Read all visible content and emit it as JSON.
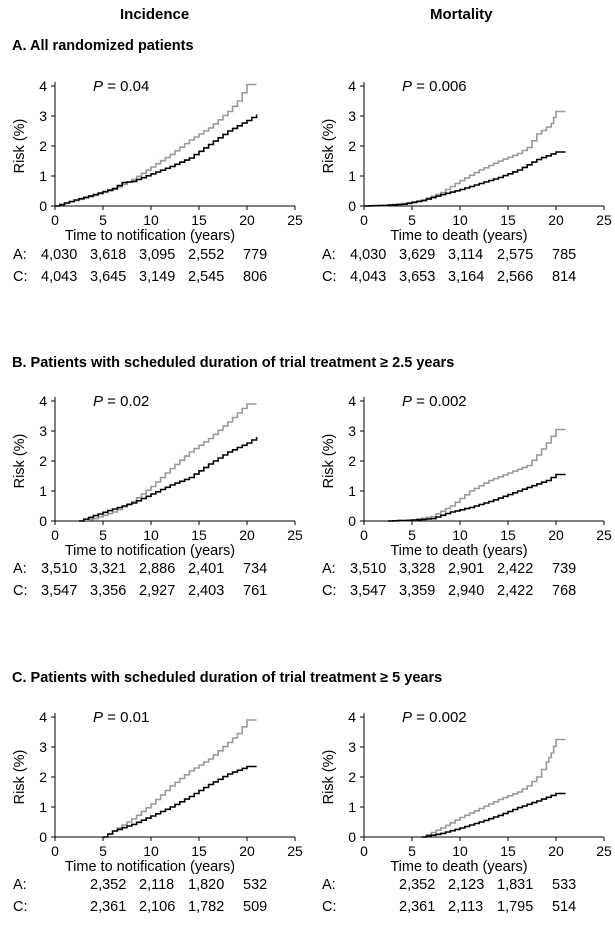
{
  "columns": {
    "incidence": "Incidence",
    "mortality": "Mortality"
  },
  "sections": [
    {
      "title": "A. All randomized patients"
    },
    {
      "title": "B. Patients with scheduled duration of trial treatment ≥ 2.5 years"
    },
    {
      "title": "C. Patients with scheduled duration of trial treatment ≥ 5 years"
    }
  ],
  "colors": {
    "A": "#9a9a9a",
    "C": "#000000"
  },
  "chart_data": [
    {
      "type": "line",
      "section": "A",
      "column": "Incidence",
      "p_label": "P",
      "p_value": "= 0.04",
      "xlabel": "Time to notification (years)",
      "ylabel": "Risk (%)",
      "xlim": [
        0,
        25
      ],
      "ylim": [
        0,
        4
      ],
      "xticks": [
        "0",
        "5",
        "10",
        "15",
        "20",
        "25"
      ],
      "yticks": [
        "0",
        "1",
        "2",
        "3",
        "4"
      ],
      "series": [
        {
          "key": "A",
          "x": [
            0,
            2,
            4,
            6,
            8,
            10,
            12,
            14,
            16,
            18,
            19,
            20,
            21
          ],
          "y": [
            0,
            0.18,
            0.35,
            0.55,
            0.88,
            1.3,
            1.72,
            2.2,
            2.6,
            3.15,
            3.5,
            4.05,
            4.05
          ]
        },
        {
          "key": "C",
          "x": [
            0,
            2,
            4,
            6,
            7,
            8,
            10,
            12,
            14,
            16,
            18,
            20,
            21
          ],
          "y": [
            0,
            0.2,
            0.38,
            0.58,
            0.78,
            0.82,
            1.07,
            1.32,
            1.6,
            2.05,
            2.5,
            2.85,
            3.05
          ]
        }
      ],
      "risk_table": {
        "A": [
          "4,030",
          "3,618",
          "3,095",
          "2,552",
          "779"
        ],
        "C": [
          "4,043",
          "3,645",
          "3,149",
          "2,545",
          "806"
        ]
      }
    },
    {
      "type": "line",
      "section": "A",
      "column": "Mortality",
      "p_label": "P",
      "p_value": "= 0.006",
      "xlabel": "Time to death (years)",
      "ylabel": "Risk (%)",
      "xlim": [
        0,
        25
      ],
      "ylim": [
        0,
        4
      ],
      "xticks": [
        "0",
        "5",
        "10",
        "15",
        "20",
        "25"
      ],
      "yticks": [
        "0",
        "1",
        "2",
        "3",
        "4"
      ],
      "series": [
        {
          "key": "A",
          "x": [
            0,
            2,
            4,
            6,
            8,
            10,
            12,
            14,
            16,
            17,
            18,
            19.5,
            20,
            21
          ],
          "y": [
            0,
            0.02,
            0.08,
            0.2,
            0.45,
            0.85,
            1.2,
            1.5,
            1.75,
            1.95,
            2.4,
            2.75,
            3.15,
            3.15
          ]
        },
        {
          "key": "C",
          "x": [
            0,
            2,
            4,
            6,
            8,
            10,
            12,
            14,
            16,
            18,
            20,
            21
          ],
          "y": [
            0,
            0.02,
            0.06,
            0.18,
            0.38,
            0.55,
            0.75,
            0.95,
            1.2,
            1.55,
            1.8,
            1.8
          ]
        }
      ],
      "risk_table": {
        "A": [
          "4,030",
          "3,629",
          "3,114",
          "2,575",
          "785"
        ],
        "C": [
          "4,043",
          "3,653",
          "3,164",
          "2,566",
          "814"
        ]
      }
    },
    {
      "type": "line",
      "section": "B",
      "column": "Incidence",
      "p_label": "P",
      "p_value": "= 0.02",
      "xlabel": "Time to notification (years)",
      "ylabel": "Risk (%)",
      "xlim": [
        0,
        25
      ],
      "ylim": [
        0,
        4
      ],
      "xticks": [
        "0",
        "5",
        "10",
        "15",
        "20",
        "25"
      ],
      "yticks": [
        "0",
        "1",
        "2",
        "3",
        "4"
      ],
      "series": [
        {
          "key": "A",
          "x": [
            2.5,
            4,
            6,
            8,
            10,
            12,
            14,
            16,
            18,
            20,
            21
          ],
          "y": [
            0,
            0.08,
            0.3,
            0.65,
            1.15,
            1.75,
            2.3,
            2.75,
            3.3,
            3.9,
            3.9
          ]
        },
        {
          "key": "C",
          "x": [
            2.5,
            4,
            6,
            8,
            10,
            12,
            14,
            16,
            18,
            20,
            21
          ],
          "y": [
            0,
            0.18,
            0.4,
            0.6,
            0.9,
            1.2,
            1.45,
            1.9,
            2.3,
            2.6,
            2.8
          ]
        }
      ],
      "risk_table": {
        "A": [
          "3,510",
          "3,321",
          "2,886",
          "2,401",
          "734"
        ],
        "C": [
          "3,547",
          "3,356",
          "2,927",
          "2,403",
          "761"
        ]
      }
    },
    {
      "type": "line",
      "section": "B",
      "column": "Mortality",
      "p_label": "P",
      "p_value": "= 0.002",
      "xlabel": "Time to death (years)",
      "ylabel": "Risk (%)",
      "xlim": [
        0,
        25
      ],
      "ylim": [
        0,
        4
      ],
      "xticks": [
        "0",
        "5",
        "10",
        "15",
        "20",
        "25"
      ],
      "yticks": [
        "0",
        "1",
        "2",
        "3",
        "4"
      ],
      "series": [
        {
          "key": "A",
          "x": [
            2.5,
            5,
            7,
            9,
            11,
            13,
            15,
            17,
            18,
            19,
            20,
            21
          ],
          "y": [
            0,
            0.03,
            0.15,
            0.5,
            1.0,
            1.35,
            1.6,
            1.85,
            2.2,
            2.6,
            3.05,
            3.05
          ]
        },
        {
          "key": "C",
          "x": [
            2.5,
            5,
            7,
            9,
            11,
            13,
            15,
            17,
            19,
            20,
            21
          ],
          "y": [
            0,
            0.03,
            0.08,
            0.3,
            0.45,
            0.65,
            0.88,
            1.12,
            1.35,
            1.55,
            1.55
          ]
        }
      ],
      "risk_table": {
        "A": [
          "3,510",
          "3,328",
          "2,901",
          "2,422",
          "739"
        ],
        "C": [
          "3,547",
          "3,359",
          "2,940",
          "2,422",
          "768"
        ]
      }
    },
    {
      "type": "line",
      "section": "C",
      "column": "Incidence",
      "p_label": "P",
      "p_value": "= 0.01",
      "xlabel": "Time to notification (years)",
      "ylabel": "Risk (%)",
      "xlim": [
        0,
        25
      ],
      "ylim": [
        0,
        4
      ],
      "xticks": [
        "0",
        "5",
        "10",
        "15",
        "20",
        "25"
      ],
      "yticks": [
        "0",
        "1",
        "2",
        "3",
        "4"
      ],
      "series": [
        {
          "key": "A",
          "x": [
            5,
            6,
            8,
            10,
            12,
            14,
            16,
            18,
            19,
            20,
            21
          ],
          "y": [
            0,
            0.2,
            0.6,
            1.1,
            1.7,
            2.2,
            2.6,
            3.15,
            3.45,
            3.9,
            3.9
          ]
        },
        {
          "key": "C",
          "x": [
            5,
            6,
            8,
            10,
            12,
            14,
            16,
            18,
            20,
            21
          ],
          "y": [
            0,
            0.2,
            0.42,
            0.7,
            1.0,
            1.35,
            1.75,
            2.1,
            2.35,
            2.35
          ]
        }
      ],
      "risk_table": {
        "A": [
          "2,352",
          "2,118",
          "1,820",
          "532"
        ],
        "C": [
          "2,361",
          "2,106",
          "1,782",
          "509"
        ]
      }
    },
    {
      "type": "line",
      "section": "C",
      "column": "Mortality",
      "p_label": "P",
      "p_value": "= 0.002",
      "xlabel": "Time to death (years)",
      "ylabel": "Risk (%)",
      "xlim": [
        0,
        25
      ],
      "ylim": [
        0,
        4
      ],
      "xticks": [
        "0",
        "5",
        "10",
        "15",
        "20",
        "25"
      ],
      "yticks": [
        "0",
        "1",
        "2",
        "3",
        "4"
      ],
      "series": [
        {
          "key": "A",
          "x": [
            6,
            8,
            10,
            12,
            14,
            16,
            17,
            18,
            19,
            19.5,
            20,
            21
          ],
          "y": [
            0,
            0.3,
            0.65,
            0.95,
            1.25,
            1.5,
            1.7,
            2.0,
            2.5,
            2.8,
            3.25,
            3.25
          ]
        },
        {
          "key": "C",
          "x": [
            6,
            8,
            10,
            12,
            14,
            16,
            18,
            20,
            21
          ],
          "y": [
            0,
            0.12,
            0.3,
            0.5,
            0.72,
            0.98,
            1.2,
            1.45,
            1.45
          ]
        }
      ],
      "risk_table": {
        "A": [
          "2,352",
          "2,123",
          "1,831",
          "533"
        ],
        "C": [
          "2,361",
          "2,113",
          "1,795",
          "514"
        ]
      }
    }
  ]
}
